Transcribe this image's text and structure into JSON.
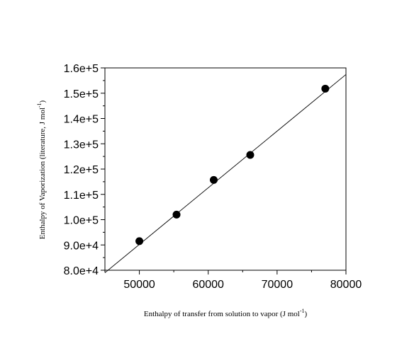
{
  "chart_data": {
    "type": "scatter",
    "xlabel": "Enthalpy of transfer from solution to vapor (J mol",
    "xlabel_sup": "-1",
    "xlabel_end": ")",
    "ylabel": "Enthalpy of Vaporization (literature, J mol",
    "ylabel_sup": "-1",
    "ylabel_end": ")",
    "xlim": [
      45000,
      80000
    ],
    "ylim": [
      80000,
      160000
    ],
    "x_ticks": [
      50000,
      60000,
      70000,
      80000
    ],
    "x_tick_labels": [
      "50000",
      "60000",
      "70000",
      "80000"
    ],
    "y_ticks": [
      80000,
      90000,
      100000,
      110000,
      120000,
      130000,
      140000,
      150000,
      160000
    ],
    "y_tick_labels": [
      "8.0e+4",
      "9.0e+4",
      "1.0e+5",
      "1.1e+5",
      "1.2e+5",
      "1.3e+5",
      "1.4e+5",
      "1.5e+5",
      "1.6e+5"
    ],
    "grid": false,
    "points": [
      {
        "x": 50000,
        "y": 91500
      },
      {
        "x": 55400,
        "y": 102000
      },
      {
        "x": 60800,
        "y": 115700
      },
      {
        "x": 66100,
        "y": 125600
      },
      {
        "x": 77000,
        "y": 151800
      }
    ],
    "fit_line": {
      "x": [
        45000,
        80000
      ],
      "y": [
        79000,
        157400
      ]
    },
    "point_color": "#000000",
    "line_color": "#000000"
  }
}
